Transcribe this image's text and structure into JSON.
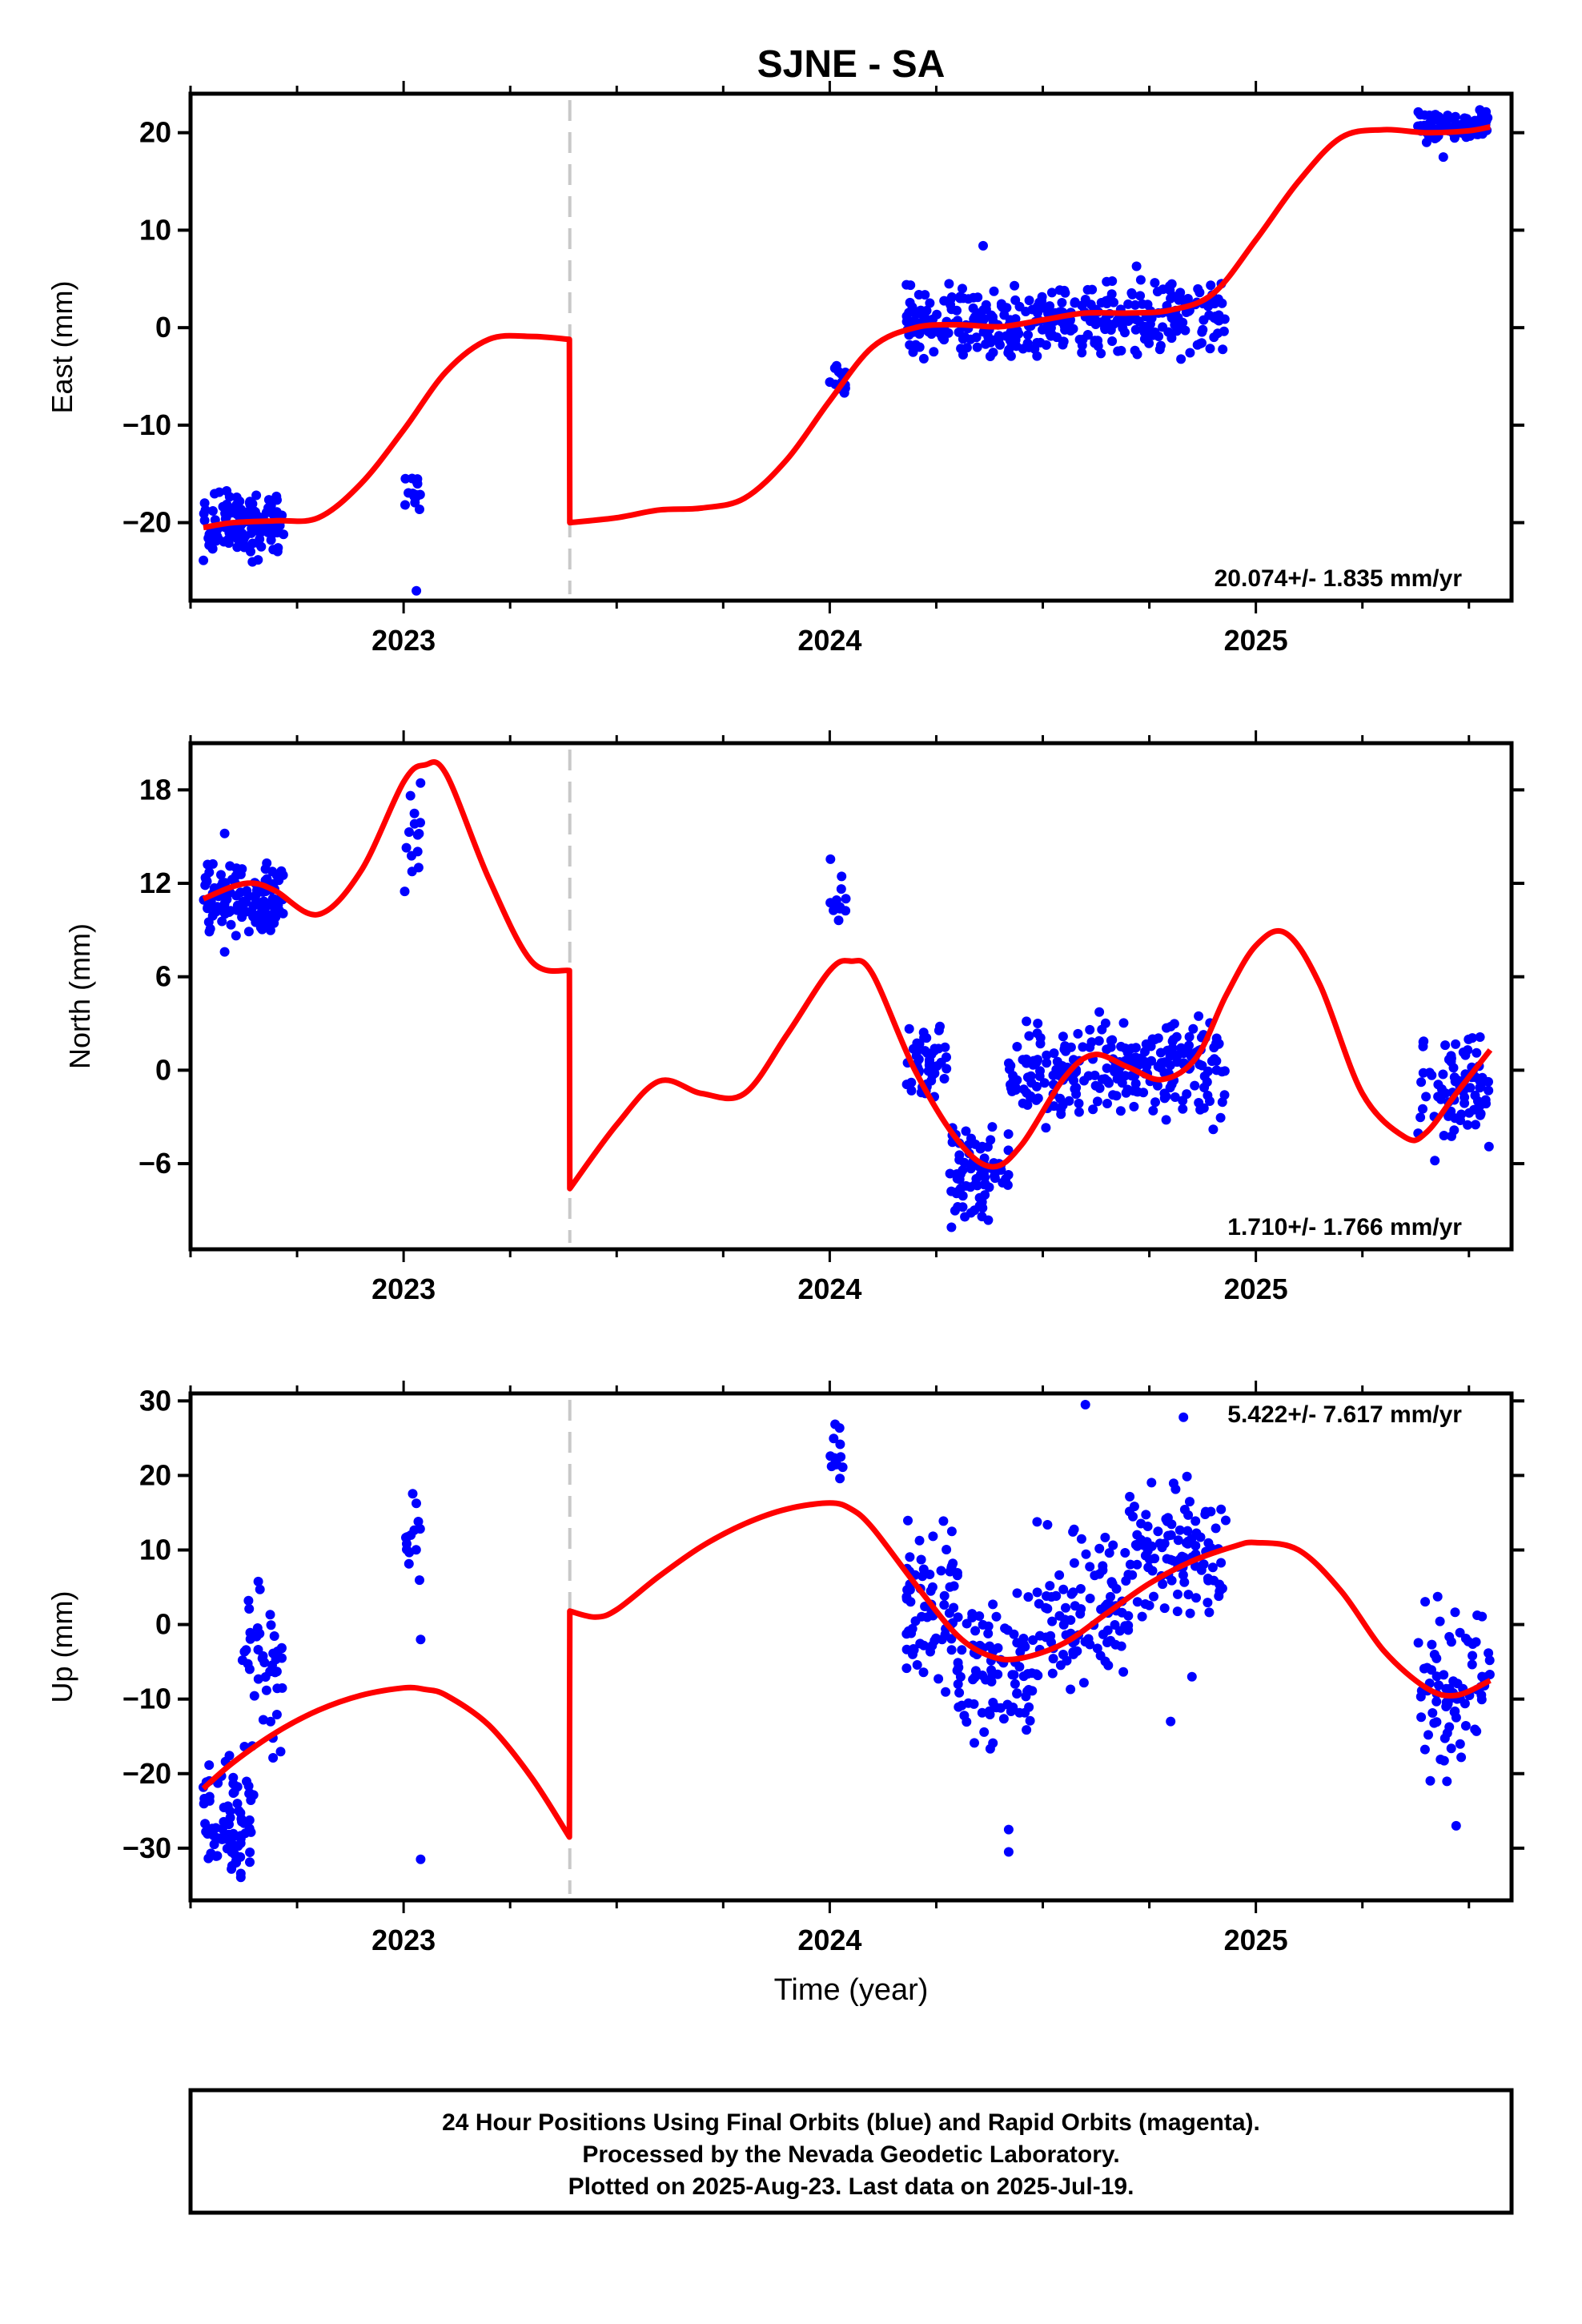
{
  "title": "SJNE - SA",
  "colors": {
    "points": "#0000ff",
    "fit": "#ff0000",
    "offset_line": "#c8c8c8",
    "frame": "#000000"
  },
  "x_axis": {
    "label": "Time (year)",
    "range": [
      2022.5,
      2025.6
    ],
    "tick_labels": [
      "2023",
      "2024",
      "2025"
    ],
    "major_ticks": [
      2023,
      2024,
      2025
    ],
    "minor_step": 0.25
  },
  "offset_epoch": 2023.39,
  "chart_data": [
    {
      "type": "scatter",
      "ylabel": "East (mm)",
      "ylim": [
        -28,
        24
      ],
      "yticks": [
        20,
        10,
        0,
        -10,
        -20
      ],
      "ytick_labels": [
        "20",
        "10",
        "0",
        "−10",
        "−20"
      ],
      "rate": "20.074+/- 1.835 mm/yr",
      "rate_position": "bottom-right",
      "fit": {
        "x": [
          2022.53,
          2022.6,
          2022.7,
          2022.8,
          2022.9,
          2023.0,
          2023.1,
          2023.2,
          2023.3,
          2023.389,
          2023.39,
          2023.5,
          2023.6,
          2023.7,
          2023.8,
          2023.9,
          2024.0,
          2024.1,
          2024.2,
          2024.3,
          2024.4,
          2024.5,
          2024.6,
          2024.7,
          2024.8,
          2024.9,
          2025.0,
          2025.1,
          2025.2,
          2025.3,
          2025.4,
          2025.5,
          2025.55
        ],
        "y": [
          -20.5,
          -20,
          -19.8,
          -19.5,
          -16,
          -10.5,
          -4.5,
          -1.2,
          -0.9,
          -1.2,
          -20,
          -19.5,
          -18.7,
          -18.5,
          -17.5,
          -13.5,
          -7.5,
          -2,
          0,
          0.3,
          0.1,
          0.8,
          1.5,
          1.5,
          1.8,
          3.5,
          9,
          15,
          19.5,
          20.3,
          20,
          20.2,
          20.6
        ]
      },
      "clusters": [
        {
          "x": [
            2022.53,
            2022.72
          ],
          "y": [
            -24.5,
            -16
          ],
          "n": 130,
          "seed": 1
        },
        {
          "x": [
            2023.0,
            2023.04
          ],
          "y": [
            -20,
            -12.5
          ],
          "n": 14,
          "seed": 2
        },
        {
          "x": [
            2024.0,
            2024.04
          ],
          "y": [
            -7.5,
            -3.5
          ],
          "n": 12,
          "seed": 3
        },
        {
          "x": [
            2024.18,
            2024.5
          ],
          "y": [
            -4,
            5
          ],
          "n": 160,
          "seed": 4
        },
        {
          "x": [
            2024.5,
            2024.93
          ],
          "y": [
            -3.5,
            5.5
          ],
          "n": 200,
          "seed": 5
        },
        {
          "x": [
            2025.38,
            2025.55
          ],
          "y": [
            18.5,
            22.5
          ],
          "n": 100,
          "seed": 6
        }
      ],
      "extra_points": [
        [
          2024.36,
          8.4
        ],
        [
          2024.28,
          4.5
        ],
        [
          2023.03,
          -27
        ],
        [
          2025.44,
          17.5
        ],
        [
          2024.72,
          6.3
        ],
        [
          2024.18,
          4.4
        ]
      ]
    },
    {
      "type": "scatter",
      "ylabel": "North (mm)",
      "ylim": [
        -11.5,
        21
      ],
      "yticks": [
        18,
        12,
        6,
        0,
        -6
      ],
      "ytick_labels": [
        "18",
        "12",
        "6",
        "0",
        "−6"
      ],
      "rate": "1.710+/- 1.766 mm/yr",
      "rate_position": "bottom-right",
      "fit": {
        "x": [
          2022.53,
          2022.6,
          2022.65,
          2022.7,
          2022.8,
          2022.9,
          2023.0,
          2023.05,
          2023.1,
          2023.2,
          2023.3,
          2023.389,
          2023.39,
          2023.5,
          2023.6,
          2023.7,
          2023.8,
          2023.9,
          2024.0,
          2024.05,
          2024.1,
          2024.2,
          2024.3,
          2024.38,
          2024.45,
          2024.55,
          2024.62,
          2024.7,
          2024.78,
          2024.86,
          2024.93,
          2025.0,
          2025.07,
          2025.15,
          2025.25,
          2025.35,
          2025.4,
          2025.47,
          2025.55
        ],
        "y": [
          11,
          11.8,
          12,
          11.5,
          10,
          12.8,
          18.5,
          19.6,
          19,
          12.3,
          7,
          6.4,
          -7.6,
          -3.5,
          -0.7,
          -1.5,
          -1.5,
          2.3,
          6.4,
          7,
          6.2,
          0,
          -4.5,
          -6.2,
          -4.8,
          -0.5,
          1,
          0.2,
          -0.6,
          0.8,
          4.8,
          8,
          8.8,
          5.5,
          -1.5,
          -4.3,
          -4,
          -1.5,
          1.3
        ]
      },
      "clusters": [
        {
          "x": [
            2022.53,
            2022.72
          ],
          "y": [
            8.5,
            13.5
          ],
          "n": 130,
          "seed": 11
        },
        {
          "x": [
            2023.0,
            2023.04
          ],
          "y": [
            11,
            20
          ],
          "n": 14,
          "seed": 12
        },
        {
          "x": [
            2024.0,
            2024.04
          ],
          "y": [
            9,
            14
          ],
          "n": 12,
          "seed": 13
        },
        {
          "x": [
            2024.18,
            2024.28
          ],
          "y": [
            -2.5,
            3
          ],
          "n": 50,
          "seed": 14
        },
        {
          "x": [
            2024.28,
            2024.42
          ],
          "y": [
            -10.5,
            -2.5
          ],
          "n": 80,
          "seed": 15
        },
        {
          "x": [
            2024.42,
            2024.6
          ],
          "y": [
            -4,
            3.5
          ],
          "n": 90,
          "seed": 16
        },
        {
          "x": [
            2024.6,
            2024.93
          ],
          "y": [
            -3.5,
            4
          ],
          "n": 160,
          "seed": 17
        },
        {
          "x": [
            2025.38,
            2025.55
          ],
          "y": [
            -5,
            3
          ],
          "n": 80,
          "seed": 18
        }
      ],
      "extra_points": [
        [
          2022.58,
          15.2
        ],
        [
          2022.58,
          7.6
        ],
        [
          2025.42,
          -5.8
        ],
        [
          2024.9,
          -3.8
        ]
      ]
    },
    {
      "type": "scatter",
      "ylabel": "Up (mm)",
      "ylim": [
        -37,
        31
      ],
      "yticks": [
        30,
        20,
        10,
        0,
        -10,
        -20,
        -30
      ],
      "ytick_labels": [
        "30",
        "20",
        "10",
        "0",
        "−10",
        "−20",
        "−30"
      ],
      "rate": "5.422+/- 7.617 mm/yr",
      "rate_position": "top-right",
      "fit": {
        "x": [
          2022.53,
          2022.6,
          2022.7,
          2022.8,
          2022.9,
          2023.0,
          2023.05,
          2023.1,
          2023.2,
          2023.3,
          2023.389,
          2023.39,
          2023.45,
          2023.5,
          2023.6,
          2023.7,
          2023.8,
          2023.9,
          2024.0,
          2024.05,
          2024.1,
          2024.2,
          2024.3,
          2024.38,
          2024.45,
          2024.55,
          2024.65,
          2024.75,
          2024.85,
          2024.95,
          2025.0,
          2025.1,
          2025.2,
          2025.3,
          2025.4,
          2025.47,
          2025.55
        ],
        "y": [
          -22,
          -18.5,
          -14.5,
          -11.5,
          -9.5,
          -8.5,
          -8.7,
          -9.5,
          -13.5,
          -20.5,
          -28.5,
          1.8,
          1.0,
          2,
          6.5,
          10.5,
          13.5,
          15.5,
          16.3,
          15.5,
          13,
          5.5,
          -1.5,
          -4.3,
          -4.5,
          -2.5,
          1.5,
          5.5,
          8.5,
          10.5,
          11,
          10,
          4.5,
          -3.5,
          -8.5,
          -9.5,
          -7.5
        ]
      },
      "clusters": [
        {
          "x": [
            2022.53,
            2022.65
          ],
          "y": [
            -35,
            -17
          ],
          "n": 80,
          "seed": 21
        },
        {
          "x": [
            2022.62,
            2022.72
          ],
          "y": [
            -20,
            10
          ],
          "n": 45,
          "seed": 22
        },
        {
          "x": [
            2023.0,
            2023.04
          ],
          "y": [
            3,
            20
          ],
          "n": 14,
          "seed": 23
        },
        {
          "x": [
            2024.0,
            2024.04
          ],
          "y": [
            17,
            29
          ],
          "n": 12,
          "seed": 24
        },
        {
          "x": [
            2024.18,
            2024.3
          ],
          "y": [
            -10,
            16
          ],
          "n": 70,
          "seed": 25
        },
        {
          "x": [
            2024.3,
            2024.48
          ],
          "y": [
            -20,
            5
          ],
          "n": 90,
          "seed": 26
        },
        {
          "x": [
            2024.48,
            2024.7
          ],
          "y": [
            -10,
            15
          ],
          "n": 100,
          "seed": 27
        },
        {
          "x": [
            2024.7,
            2024.93
          ],
          "y": [
            -2,
            20
          ],
          "n": 110,
          "seed": 28
        },
        {
          "x": [
            2025.38,
            2025.55
          ],
          "y": [
            -22,
            6
          ],
          "n": 80,
          "seed": 29
        }
      ],
      "extra_points": [
        [
          2023.04,
          -31.5
        ],
        [
          2024.42,
          -30.5
        ],
        [
          2024.42,
          -27.5
        ],
        [
          2024.6,
          29.5
        ],
        [
          2024.83,
          27.8
        ],
        [
          2024.8,
          -13
        ],
        [
          2024.85,
          -7
        ],
        [
          2025.47,
          -27
        ],
        [
          2023.04,
          -2
        ]
      ]
    }
  ],
  "footer": {
    "line1": "24 Hour Positions Using Final Orbits (blue) and Rapid Orbits (magenta).",
    "line2": "Processed by the Nevada Geodetic Laboratory.",
    "line3": "Plotted on 2025-Aug-23. Last data on 2025-Jul-19."
  }
}
